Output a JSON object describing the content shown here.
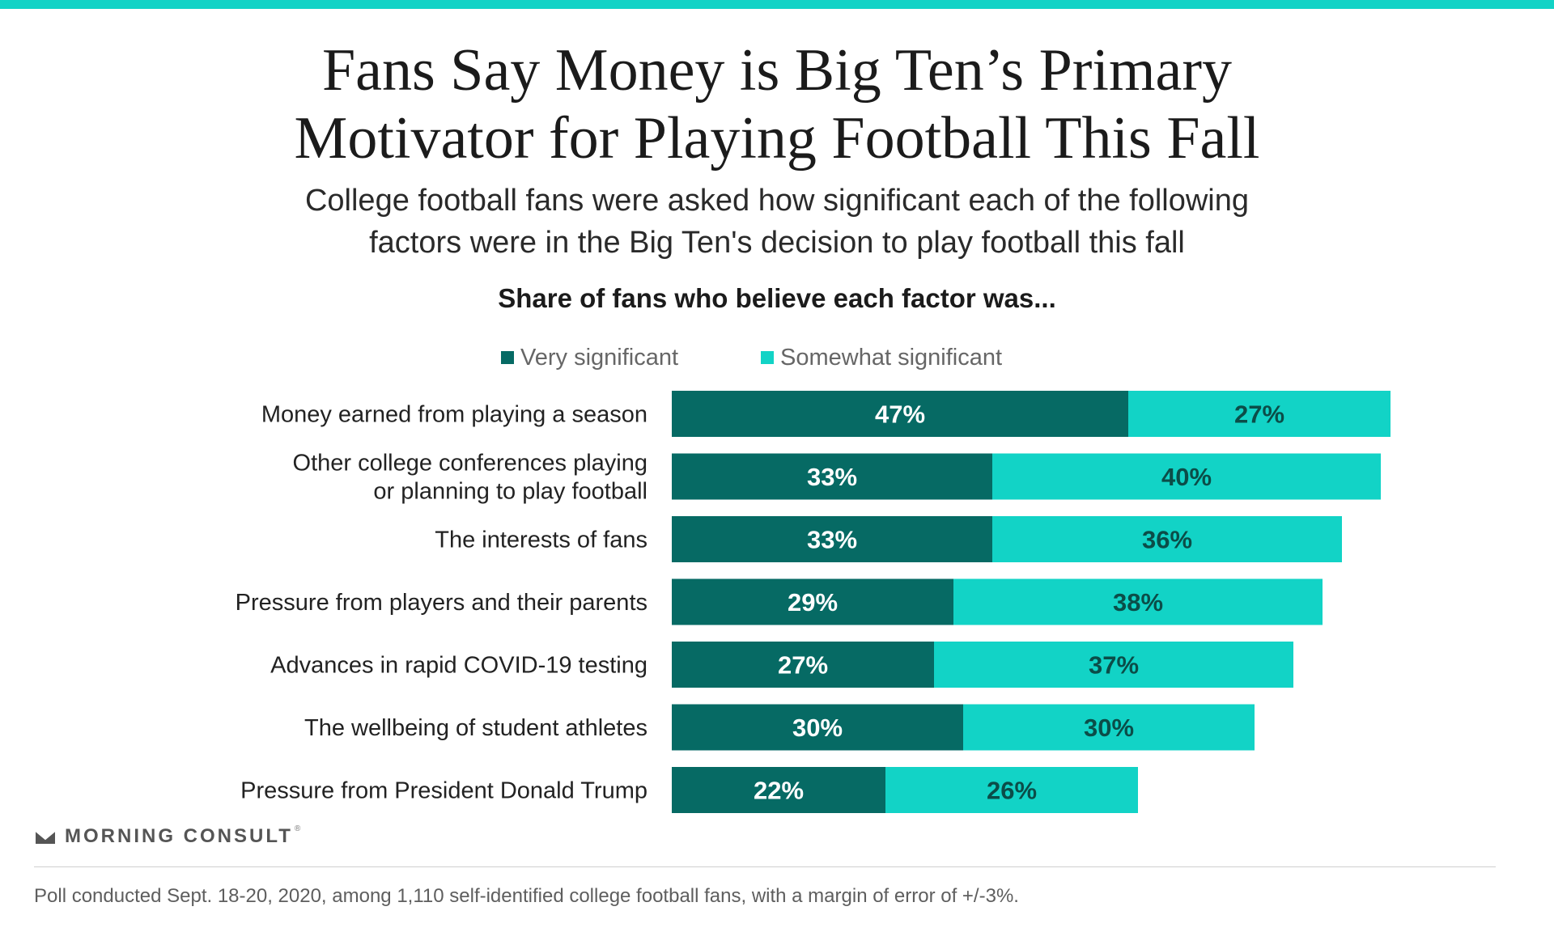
{
  "header": {
    "title_line1": "Fans Say Money is Big Ten’s Primary",
    "title_line2": "Motivator for Playing Football This Fall",
    "subtitle_line1": "College football fans were asked how significant each of the following",
    "subtitle_line2": "factors were in the Big Ten's decision to play football this fall",
    "section_label": "Share of fans who believe each factor was..."
  },
  "legend": {
    "very": "Very significant",
    "somewhat": "Somewhat significant"
  },
  "colors": {
    "very": "#066a64",
    "somewhat": "#12d3c6",
    "accent_bar": "#12d3c6",
    "label_on_very": "#ffffff",
    "label_on_somewhat": "#0b4d48"
  },
  "chart_data": {
    "type": "bar",
    "orientation": "horizontal",
    "stacked": true,
    "categories": [
      [
        "Money earned from playing a season"
      ],
      [
        "Other college conferences playing",
        "or planning to play football"
      ],
      [
        "The interests of fans"
      ],
      [
        "Pressure from players and their parents"
      ],
      [
        "Advances in rapid COVID-19 testing"
      ],
      [
        "The wellbeing of student athletes"
      ],
      [
        "Pressure from President Donald Trump"
      ]
    ],
    "series": [
      {
        "name": "Very significant",
        "values": [
          47,
          33,
          33,
          29,
          27,
          30,
          22
        ],
        "labels": [
          "47%",
          "33%",
          "33%",
          "29%",
          "27%",
          "30%",
          "22%"
        ]
      },
      {
        "name": "Somewhat significant",
        "values": [
          27,
          40,
          36,
          38,
          37,
          30,
          26
        ],
        "labels": [
          "27%",
          "40%",
          "36%",
          "38%",
          "37%",
          "30%",
          "26%"
        ]
      }
    ],
    "xlim": [
      0,
      100
    ],
    "grid": false,
    "legend_position": "top"
  },
  "brand": {
    "name": "MORNING CONSULT",
    "registered": "®"
  },
  "footnote": "Poll conducted Sept. 18-20, 2020, among 1,110 self-identified college football fans, with a margin of error of +/-3%."
}
